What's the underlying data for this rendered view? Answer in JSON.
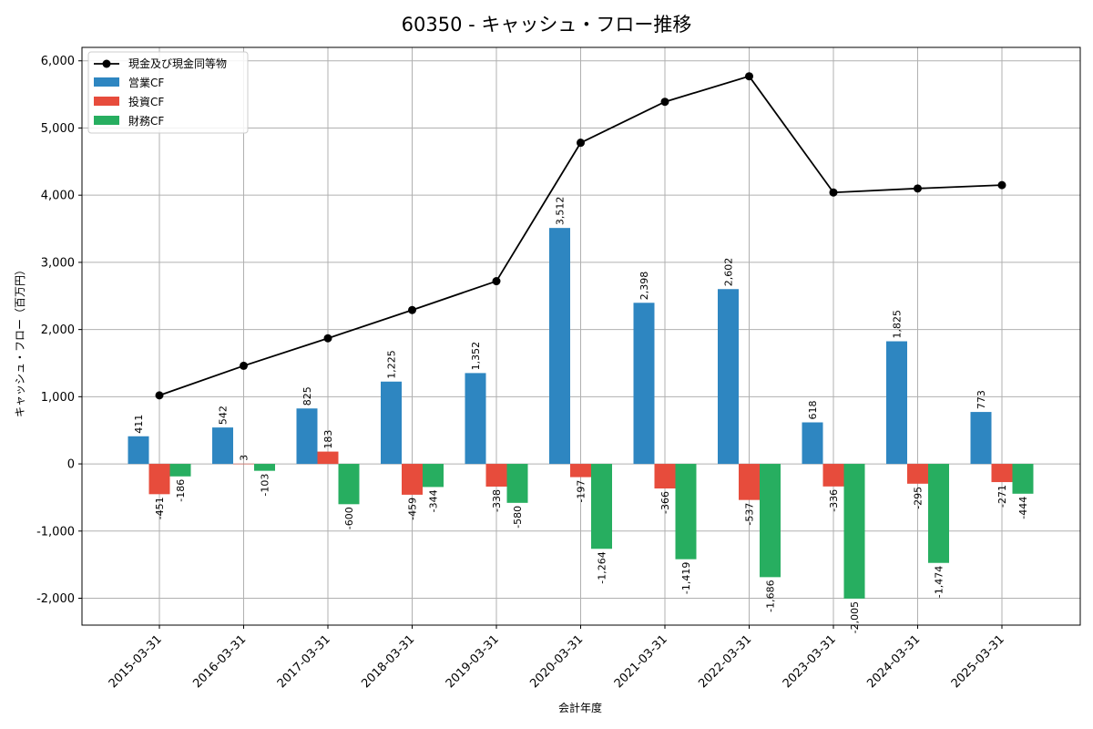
{
  "chart_data": {
    "type": "bar",
    "title": "60350 - キャッシュ・フロー推移",
    "xlabel": "会計年度",
    "ylabel": "キャッシュ・フロー（百万円）",
    "ylim": [
      -2400,
      6200
    ],
    "yticks": [
      -2000,
      -1000,
      0,
      1000,
      2000,
      3000,
      4000,
      5000,
      6000
    ],
    "ytick_labels": [
      "-2,000",
      "-1,000",
      "0",
      "1,000",
      "2,000",
      "3,000",
      "4,000",
      "5,000",
      "6,000"
    ],
    "grid": true,
    "legend_position": "top-left",
    "categories": [
      "2015-03-31",
      "2016-03-31",
      "2017-03-31",
      "2018-03-31",
      "2019-03-31",
      "2020-03-31",
      "2021-03-31",
      "2022-03-31",
      "2023-03-31",
      "2024-03-31",
      "2025-03-31"
    ],
    "line_series": {
      "name": "現金及び現金同等物",
      "color": "#000000",
      "values": [
        1020,
        1460,
        1870,
        2290,
        2720,
        4780,
        5390,
        5770,
        4040,
        4100,
        4150
      ]
    },
    "series": [
      {
        "name": "営業CF",
        "color": "#2e86c1",
        "values": [
          411,
          542,
          825,
          1225,
          1352,
          3512,
          2398,
          2602,
          618,
          1825,
          773
        ],
        "labels": [
          "411",
          "542",
          "825",
          "1,225",
          "1,352",
          "3,512",
          "2,398",
          "2,602",
          "618",
          "1,825",
          "773"
        ]
      },
      {
        "name": "投資CF",
        "color": "#e74c3c",
        "values": [
          -451,
          3,
          183,
          -459,
          -338,
          -197,
          -366,
          -537,
          -336,
          -295,
          -271
        ],
        "labels": [
          "-451",
          "3",
          "183",
          "-459",
          "-338",
          "-197",
          "-366",
          "-537",
          "-336",
          "-295",
          "-271"
        ]
      },
      {
        "name": "財務CF",
        "color": "#27ae60",
        "values": [
          -186,
          -103,
          -600,
          -344,
          -580,
          -1264,
          -1419,
          -1686,
          -2005,
          -1474,
          -444
        ],
        "labels": [
          "-186",
          "-103",
          "-600",
          "-344",
          "-580",
          "-1,264",
          "-1,419",
          "-1,686",
          "-2,005",
          "-1,474",
          "-444"
        ]
      }
    ]
  }
}
